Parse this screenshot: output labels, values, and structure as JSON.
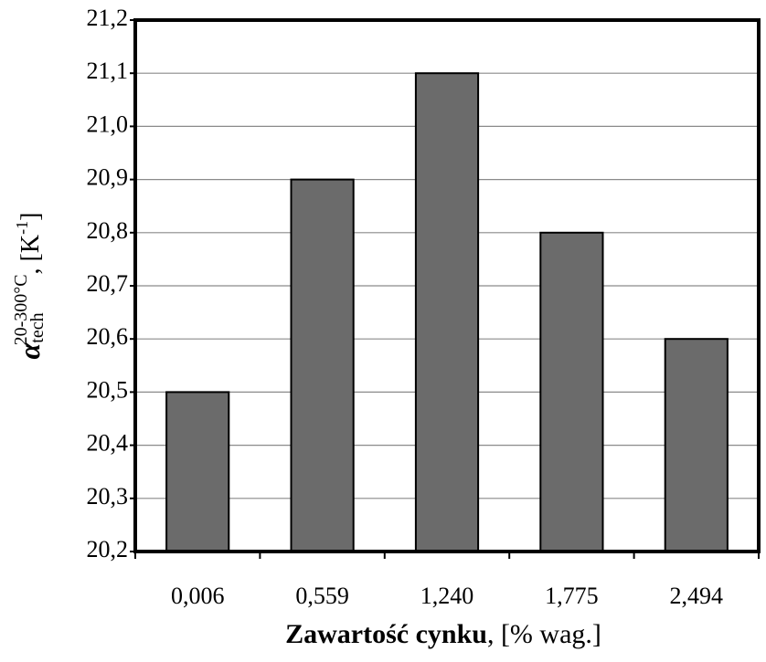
{
  "chart_data": {
    "type": "bar",
    "categories": [
      "0,006",
      "0,559",
      "1,240",
      "1,775",
      "2,494"
    ],
    "values": [
      20.5,
      20.9,
      21.1,
      20.8,
      20.6
    ],
    "color": "#6b6b6b",
    "ylim": [
      20.2,
      21.2
    ],
    "yticks": [
      {
        "value": 20.2,
        "label": "20,2"
      },
      {
        "value": 20.3,
        "label": "20,3"
      },
      {
        "value": 20.4,
        "label": "20,4"
      },
      {
        "value": 20.5,
        "label": "20,5"
      },
      {
        "value": 20.6,
        "label": "20,6"
      },
      {
        "value": 20.7,
        "label": "20,7"
      },
      {
        "value": 20.8,
        "label": "20,8"
      },
      {
        "value": 20.9,
        "label": "20,9"
      },
      {
        "value": 21.0,
        "label": "21,0"
      },
      {
        "value": 21.1,
        "label": "21,1"
      },
      {
        "value": 21.2,
        "label": "21,2"
      }
    ],
    "grid": true,
    "x_label": {
      "bold": "Zawartość cynku",
      "rest": ", [% wag.]"
    },
    "y_label": {
      "symbol": "α",
      "subscript": "tech",
      "superscript": "20-300°C",
      "unit": ",  [K",
      "unit_superscript": "-1",
      "unit_close": "]"
    }
  }
}
